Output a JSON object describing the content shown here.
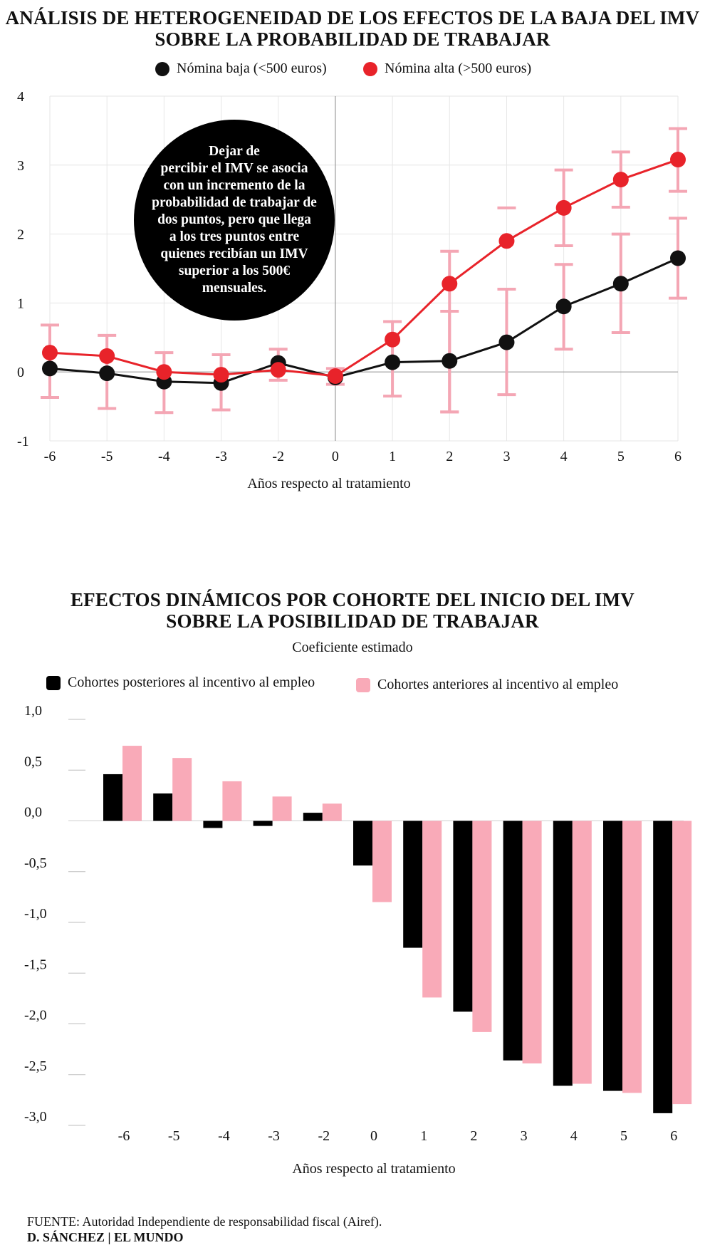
{
  "chart1": {
    "title_line1": "ANÁLISIS DE HETEROGENEIDAD DE LOS EFECTOS DE LA BAJA DEL IMV",
    "title_line2": "SOBRE LA PROBABILIDAD DE TRABAJAR",
    "legend": [
      {
        "label": "Nómina baja (<500 euros)",
        "color": "#111111"
      },
      {
        "label": "Nómina alta (>500 euros)",
        "color": "#e8232a"
      }
    ],
    "annotation": "Dejar de percibir el IMV se asocia con un incremento de la probabilidad de trabajar de dos puntos, pero que llega a los tres puntos entre quienes recibían un IMV superior a los 500€ mensuales.",
    "annotation_lines": [
      "Dejar de",
      "percibir el IMV se asocia",
      "con un incremento de la",
      "probabilidad de trabajar de",
      "dos puntos, pero que llega",
      "a los tres puntos entre",
      "quienes recibían un IMV",
      "superior a los 500€",
      "mensuales."
    ],
    "xlabel": "Años respecto al tratamiento",
    "errorbar_color": "#f4a6b4"
  },
  "chart2": {
    "title_line1": "EFECTOS DINÁMICOS POR COHORTE DEL INICIO DEL IMV",
    "title_line2": "SOBRE LA POSIBILIDAD DE TRABAJAR",
    "subtitle": "Coeficiente estimado",
    "legend": [
      {
        "label": "Cohortes posteriores al incentivo al empleo",
        "color": "#000000"
      },
      {
        "label": "Cohortes anteriores al incentivo al empleo",
        "color": "#f9aab8"
      }
    ],
    "xlabel": "Años respecto al tratamiento"
  },
  "chart_data": [
    {
      "type": "line",
      "title": "ANÁLISIS DE HETEROGENEIDAD DE LOS EFECTOS DE LA BAJA DEL IMV SOBRE LA PROBABILIDAD DE TRABAJAR",
      "categories": [
        "-6",
        "-5",
        "-4",
        "-3",
        "-2",
        "0",
        "1",
        "2",
        "3",
        "4",
        "5",
        "6"
      ],
      "xlabel": "Años respecto al tratamiento",
      "ylabel": "",
      "ylim": [
        -1,
        4
      ],
      "yticks": [
        "4",
        "3",
        "2",
        "1",
        "0",
        "-1"
      ],
      "grid": true,
      "legend": "top",
      "series": [
        {
          "name": "Nómina baja (<500 euros)",
          "color": "#111111",
          "values": [
            0.05,
            -0.02,
            -0.14,
            -0.16,
            0.13,
            -0.08,
            0.14,
            0.16,
            0.43,
            0.95,
            1.28,
            1.65
          ],
          "ci_low": [
            null,
            null,
            null,
            null,
            null,
            null,
            null,
            -0.58,
            -0.33,
            0.33,
            0.57,
            1.07
          ],
          "ci_high": [
            null,
            null,
            null,
            null,
            null,
            null,
            null,
            0.88,
            1.2,
            1.56,
            2.0,
            2.23
          ]
        },
        {
          "name": "Nómina alta (>500 euros)",
          "color": "#e8232a",
          "values": [
            0.28,
            0.23,
            0.0,
            -0.04,
            0.03,
            -0.06,
            0.47,
            1.28,
            1.9,
            2.38,
            2.79,
            3.08
          ],
          "ci_low": [
            -0.37,
            -0.53,
            -0.59,
            -0.55,
            -0.12,
            -0.18,
            -0.35,
            -0.58,
            null,
            1.83,
            2.39,
            2.62
          ],
          "ci_high": [
            0.68,
            0.53,
            0.28,
            0.25,
            0.33,
            0.05,
            0.73,
            1.75,
            2.38,
            2.93,
            3.19,
            3.53
          ]
        }
      ]
    },
    {
      "type": "bar",
      "title": "EFECTOS DINÁMICOS POR COHORTE DEL INICIO DEL IMV SOBRE LA POSIBILIDAD DE TRABAJAR",
      "subtitle": "Coeficiente estimado",
      "categories": [
        "-6",
        "-5",
        "-4",
        "-3",
        "-2",
        "0",
        "1",
        "2",
        "3",
        "4",
        "5",
        "6"
      ],
      "xlabel": "Años respecto al tratamiento",
      "ylabel": "",
      "ylim": [
        -3.0,
        1.0
      ],
      "yticks": [
        "1,0",
        "0,5",
        "0,0",
        "-0,5",
        "-1,0",
        "-1,5",
        "-2,0",
        "-2,5",
        "-3,0"
      ],
      "legend": "top",
      "series": [
        {
          "name": "Cohortes posteriores al incentivo al empleo",
          "color": "#000000",
          "values": [
            0.46,
            0.27,
            -0.07,
            -0.05,
            0.08,
            -0.44,
            -1.25,
            -1.88,
            -2.36,
            -2.61,
            -2.66,
            -2.88
          ]
        },
        {
          "name": "Cohortes anteriores al incentivo al empleo",
          "color": "#f9aab8",
          "values": [
            0.74,
            0.62,
            0.39,
            0.24,
            0.17,
            -0.8,
            -1.74,
            -2.08,
            -2.39,
            -2.59,
            -2.68,
            -2.79
          ]
        }
      ]
    }
  ],
  "footer": {
    "source_label": "FUENTE:",
    "source_text": " Autoridad Independiente de responsabilidad fiscal (Airef).",
    "credit": "D. SÁNCHEZ | EL MUNDO"
  }
}
